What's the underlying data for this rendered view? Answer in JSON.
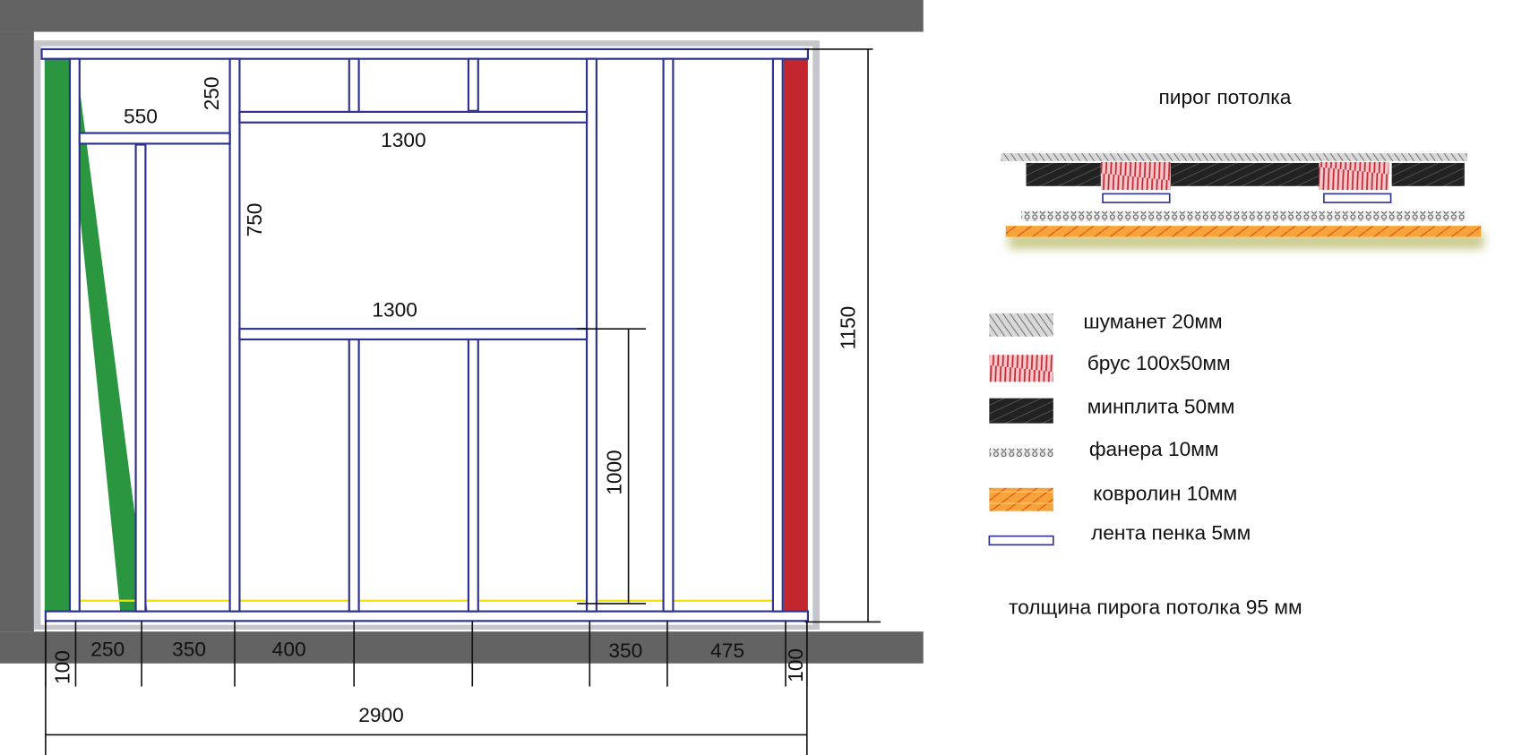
{
  "plan": {
    "inner_dimensions": [
      "550",
      "250",
      "1300",
      "750",
      "1300",
      "1000",
      "1150"
    ],
    "bottom_dimensions": [
      "100",
      "250",
      "350",
      "400",
      "350",
      "475",
      "100"
    ],
    "total_width": "2900"
  },
  "section": {
    "title": "пирог потолка",
    "thickness_note": "толщина пирога потолка 95 мм"
  },
  "legend": [
    {
      "label": "шуманет 20мм"
    },
    {
      "label": "брус 100x50мм"
    },
    {
      "label": "минплита 50мм"
    },
    {
      "label": "фанера  10мм"
    },
    {
      "label": "ковролин 10мм"
    },
    {
      "label": "лента пенка 5мм"
    }
  ]
}
